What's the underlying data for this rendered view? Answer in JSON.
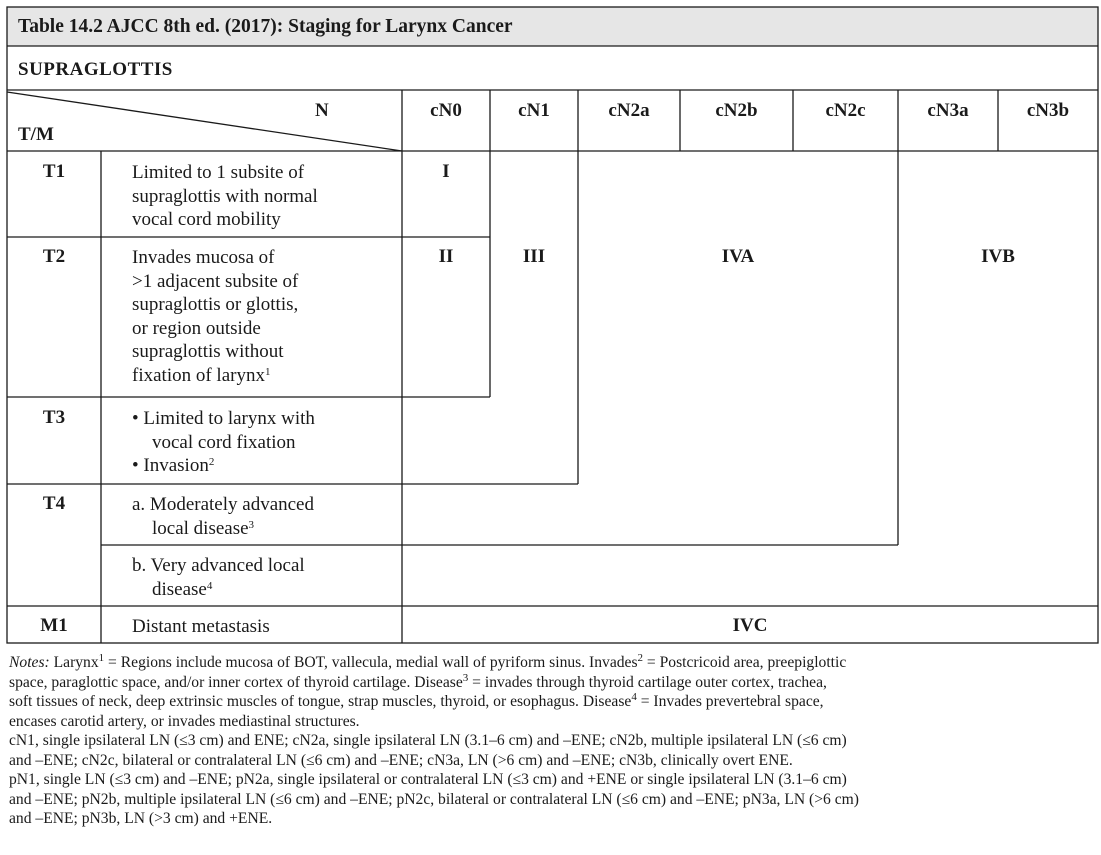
{
  "table": {
    "title": "Table 14.2 AJCC 8th ed. (2017): Staging for Larynx Cancer",
    "section": "SUPRAGLOTTIS",
    "corner_n": "N",
    "corner_tm": "T/M",
    "columns": [
      "cN0",
      "cN1",
      "cN2a",
      "cN2b",
      "cN2c",
      "cN3a",
      "cN3b"
    ],
    "rows": {
      "t1": {
        "label": "T1",
        "lines": [
          "Limited to 1 subsite of",
          "supraglottis with normal",
          "vocal cord mobility"
        ]
      },
      "t2": {
        "label": "T2",
        "lines": [
          "Invades mucosa of",
          ">1 adjacent subsite of",
          "supraglottis or glottis,",
          "or region outside",
          "supraglottis without",
          "fixation of larynx"
        ],
        "sup": "1"
      },
      "t3": {
        "label": "T3",
        "bullet_a": "• Limited to larynx with",
        "bullet_a_cont": "vocal cord fixation",
        "bullet_b": "• Invasion",
        "bullet_b_sup": "2"
      },
      "t4": {
        "label": "T4",
        "a_line1": "a. Moderately advanced",
        "a_line2": "local disease",
        "a_sup": "3",
        "b_line1": "b. Very advanced local",
        "b_line2": "disease",
        "b_sup": "4"
      },
      "m1": {
        "label": "M1",
        "desc": "Distant metastasis"
      }
    },
    "stages": {
      "t1_cn0": "I",
      "t2_cn0": "II",
      "cn1": "III",
      "iva": "IVA",
      "ivb": "IVB",
      "ivc": "IVC"
    }
  },
  "notes": {
    "prefix": "Notes:",
    "p1_l1a": " Larynx",
    "p1_s1": "1",
    "p1_l1b": " = Regions include mucosa of BOT, vallecula, medial wall of pyriform sinus. Invades",
    "p1_s2": "2",
    "p1_l1c": " = Postcricoid area, preepiglottic",
    "p1_l2": "space, paraglottic space, and/or inner cortex of thyroid cartilage. Disease",
    "p1_s3": "3",
    "p1_l2b": " = invades through thyroid cartilage outer cortex, trachea,",
    "p1_l3": "soft tissues of neck, deep extrinsic muscles of tongue, strap muscles, thyroid, or esophagus. Disease",
    "p1_s4": "4",
    "p1_l3b": " = Invades prevertebral space,",
    "p1_l4": "encases carotid artery, or invades mediastinal structures.",
    "p2_l1": "cN1, single ipsilateral LN (≤3 cm) and ENE; cN2a, single ipsilateral LN (3.1–6 cm) and –ENE; cN2b, multiple ipsilateral LN (≤6 cm)",
    "p2_l2": "and –ENE; cN2c, bilateral or contralateral LN (≤6 cm) and –ENE; cN3a, LN (>6 cm) and –ENE; cN3b, clinically overt ENE.",
    "p3_l1": "pN1, single LN (≤3 cm) and –ENE; pN2a, single ipsilateral or contralateral LN (≤3 cm) and +ENE or single ipsilateral LN (3.1–6 cm)",
    "p3_l2": "and –ENE; pN2b, multiple ipsilateral LN (≤6 cm) and –ENE; pN2c, bilateral or contralateral LN (≤6 cm) and –ENE; pN3a, LN (>6 cm)",
    "p3_l3": "and –ENE; pN3b, LN (>3 cm) and +ENE."
  },
  "colors": {
    "title_bg": "#e6e6e6",
    "rule": "#1a1a1a",
    "text": "#1a1a1a"
  }
}
